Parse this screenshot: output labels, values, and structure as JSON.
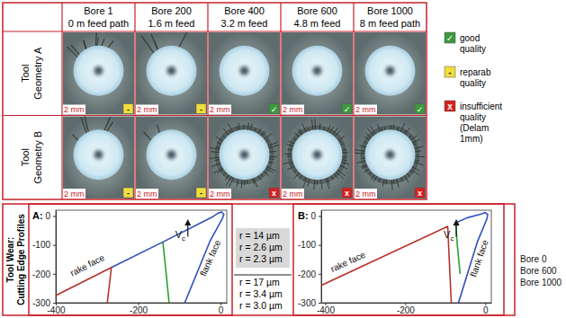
{
  "table": {
    "columns": [
      {
        "title": "Bore 1",
        "subtitle": "0 m feed path"
      },
      {
        "title": "Bore 200",
        "subtitle": "1.6 m feed"
      },
      {
        "title": "Bore 400",
        "subtitle": "3.2 m feed"
      },
      {
        "title": "Bore 600",
        "subtitle": "4.8 m feed"
      },
      {
        "title": "Bore 1000",
        "subtitle": "8 m feed path"
      }
    ],
    "rows": [
      {
        "label": [
          "Tool",
          "Geometry A"
        ],
        "cells": [
          {
            "scale": "2 mm",
            "mark": "-"
          },
          {
            "scale": "2 mm",
            "mark": "-"
          },
          {
            "scale": "2 mm",
            "mark": "✓"
          },
          {
            "scale": "2 mm",
            "mark": "✓"
          },
          {
            "scale": "2 mm",
            "mark": "✓"
          }
        ]
      },
      {
        "label": [
          "Tool",
          "Geometry B"
        ],
        "cells": [
          {
            "scale": "2 mm",
            "mark": "-"
          },
          {
            "scale": "2 mm",
            "mark": "-"
          },
          {
            "scale": "2 mm",
            "mark": "x"
          },
          {
            "scale": "2 mm",
            "mark": "x"
          },
          {
            "scale": "2 mm",
            "mark": "x"
          }
        ]
      }
    ]
  },
  "quality_legend": [
    {
      "symbol": "✓",
      "color": "#3c9a3c",
      "text": [
        "good",
        "quality"
      ]
    },
    {
      "symbol": "-",
      "color": "#f0de3c",
      "text": [
        "reparab",
        "quality"
      ]
    },
    {
      "symbol": "x",
      "color": "#d42020",
      "text": [
        "insufficient",
        "quality",
        "(Delam",
        "1mm)"
      ]
    }
  ],
  "section_label": [
    "Tool Wear:",
    "Cutting Edge Profiles"
  ],
  "radius_boxes": [
    [
      "r = 14 µm",
      "r = 2.6 µm",
      "r = 2.3 µm"
    ],
    [
      "r = 17 µm",
      "r = 3.4 µm",
      "r = 3.0 µm"
    ]
  ],
  "chart_data": [
    {
      "type": "line",
      "title": "A:",
      "xlim": [
        -400,
        15
      ],
      "ylim": [
        -300,
        20
      ],
      "xticks": [
        -400,
        -200,
        0
      ],
      "yticks": [
        -300,
        -200,
        -100,
        0
      ],
      "annotations": [
        {
          "text": "rake face",
          "x": -320,
          "y": -180
        },
        {
          "text": "flank face",
          "x": -18,
          "y": -150
        },
        {
          "text": "V",
          "subscript": "c",
          "x": -110,
          "y": -75
        }
      ],
      "series": [
        {
          "name": "Bore 0",
          "color": "#b8342a",
          "x": [
            -400,
            -265,
            -275
          ],
          "values": [
            -275,
            -178,
            -300
          ]
        },
        {
          "name": "Bore 600",
          "color": "#2ca02c",
          "x": [
            -140,
            -132,
            -125
          ],
          "values": [
            -90,
            -200,
            -300
          ]
        },
        {
          "name": "Bore 1000",
          "color": "#3050c0",
          "x": [
            -265,
            -140,
            -22,
            -8,
            2,
            8,
            4,
            -25,
            -87
          ],
          "values": [
            -178,
            -90,
            -5,
            8,
            14,
            6,
            -10,
            -85,
            -300
          ]
        }
      ]
    },
    {
      "type": "line",
      "title": "B:",
      "xlim": [
        -410,
        15
      ],
      "ylim": [
        -300,
        20
      ],
      "xticks": [
        -400,
        -200,
        0
      ],
      "yticks": [
        -300,
        -200,
        -100,
        0
      ],
      "annotations": [
        {
          "text": "rake face",
          "x": -340,
          "y": -168
        },
        {
          "text": "flank face",
          "x": -8,
          "y": -150
        },
        {
          "text": "V",
          "subscript": "c",
          "x": -104,
          "y": -75
        }
      ],
      "series": [
        {
          "name": "Bore 0",
          "color": "#b8342a",
          "x": [
            -410,
            -94,
            -85
          ],
          "values": [
            -240,
            -36,
            -300
          ]
        },
        {
          "name": "Bore 600",
          "color": "#2ca02c",
          "x": [
            -74,
            -70,
            -63
          ],
          "values": [
            -24,
            -100,
            -200
          ]
        },
        {
          "name": "Bore 1000",
          "color": "#3050c0",
          "x": [
            -74,
            -45,
            -12,
            0,
            6,
            4,
            -20,
            -67
          ],
          "values": [
            -24,
            -6,
            6,
            12,
            5,
            -10,
            -90,
            -300
          ]
        }
      ]
    }
  ]
}
